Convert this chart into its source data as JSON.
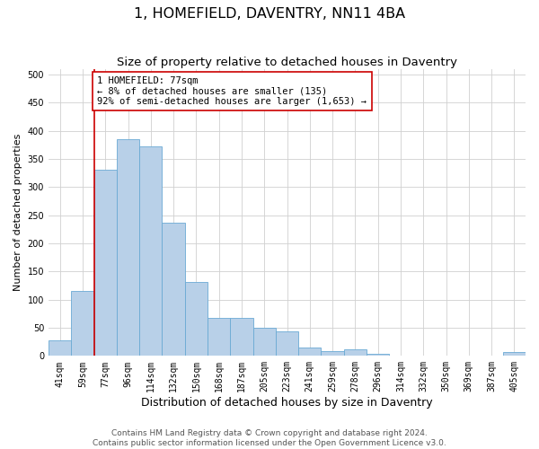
{
  "title": "1, HOMEFIELD, DAVENTRY, NN11 4BA",
  "subtitle": "Size of property relative to detached houses in Daventry",
  "xlabel": "Distribution of detached houses by size in Daventry",
  "ylabel": "Number of detached properties",
  "categories": [
    "41sqm",
    "59sqm",
    "77sqm",
    "96sqm",
    "114sqm",
    "132sqm",
    "150sqm",
    "168sqm",
    "187sqm",
    "205sqm",
    "223sqm",
    "241sqm",
    "259sqm",
    "278sqm",
    "296sqm",
    "314sqm",
    "332sqm",
    "350sqm",
    "369sqm",
    "387sqm",
    "405sqm"
  ],
  "values": [
    27,
    115,
    330,
    385,
    373,
    236,
    132,
    68,
    68,
    50,
    43,
    15,
    9,
    11,
    4,
    1,
    1,
    1,
    0,
    0,
    7
  ],
  "bar_color": "#b8d0e8",
  "bar_edge_color": "#6aaad4",
  "marker_index": 2,
  "annotation_line1": "1 HOMEFIELD: 77sqm",
  "annotation_line2": "← 8% of detached houses are smaller (135)",
  "annotation_line3": "92% of semi-detached houses are larger (1,653) →",
  "annotation_box_color": "#ffffff",
  "annotation_box_edge_color": "#cc0000",
  "vline_color": "#cc0000",
  "ylim": [
    0,
    510
  ],
  "yticks": [
    0,
    50,
    100,
    150,
    200,
    250,
    300,
    350,
    400,
    450,
    500
  ],
  "grid_color": "#d0d0d0",
  "background_color": "#ffffff",
  "footer_line1": "Contains HM Land Registry data © Crown copyright and database right 2024.",
  "footer_line2": "Contains public sector information licensed under the Open Government Licence v3.0.",
  "title_fontsize": 11.5,
  "subtitle_fontsize": 9.5,
  "xlabel_fontsize": 9,
  "ylabel_fontsize": 8,
  "tick_fontsize": 7,
  "annotation_fontsize": 7.5,
  "footer_fontsize": 6.5
}
